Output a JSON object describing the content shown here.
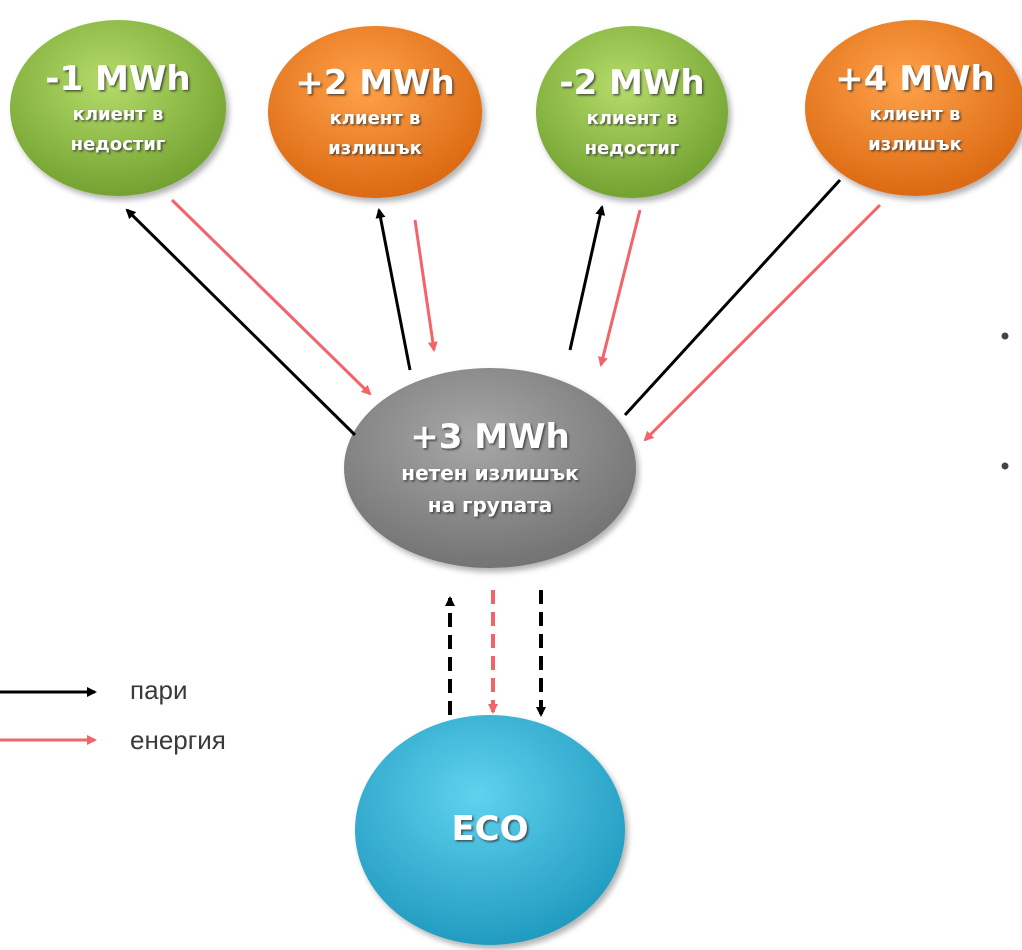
{
  "nodes": [
    {
      "title": "-1 MWh",
      "lines": [
        "клиент в",
        "недостиг"
      ]
    },
    {
      "title": "+2 MWh",
      "lines": [
        "клиент в",
        "излишък"
      ]
    },
    {
      "title": "-2 MWh",
      "lines": [
        "клиент в",
        "недостиг"
      ]
    },
    {
      "title": "+4 MWh",
      "lines": [
        "клиент в",
        "излишък"
      ]
    },
    {
      "title": "+3 MWh",
      "lines": [
        "нетен излишък",
        "на групата"
      ]
    },
    {
      "title": "ECO",
      "lines": []
    }
  ],
  "legend": [
    {
      "label": "пари"
    },
    {
      "label": "енергия"
    }
  ]
}
